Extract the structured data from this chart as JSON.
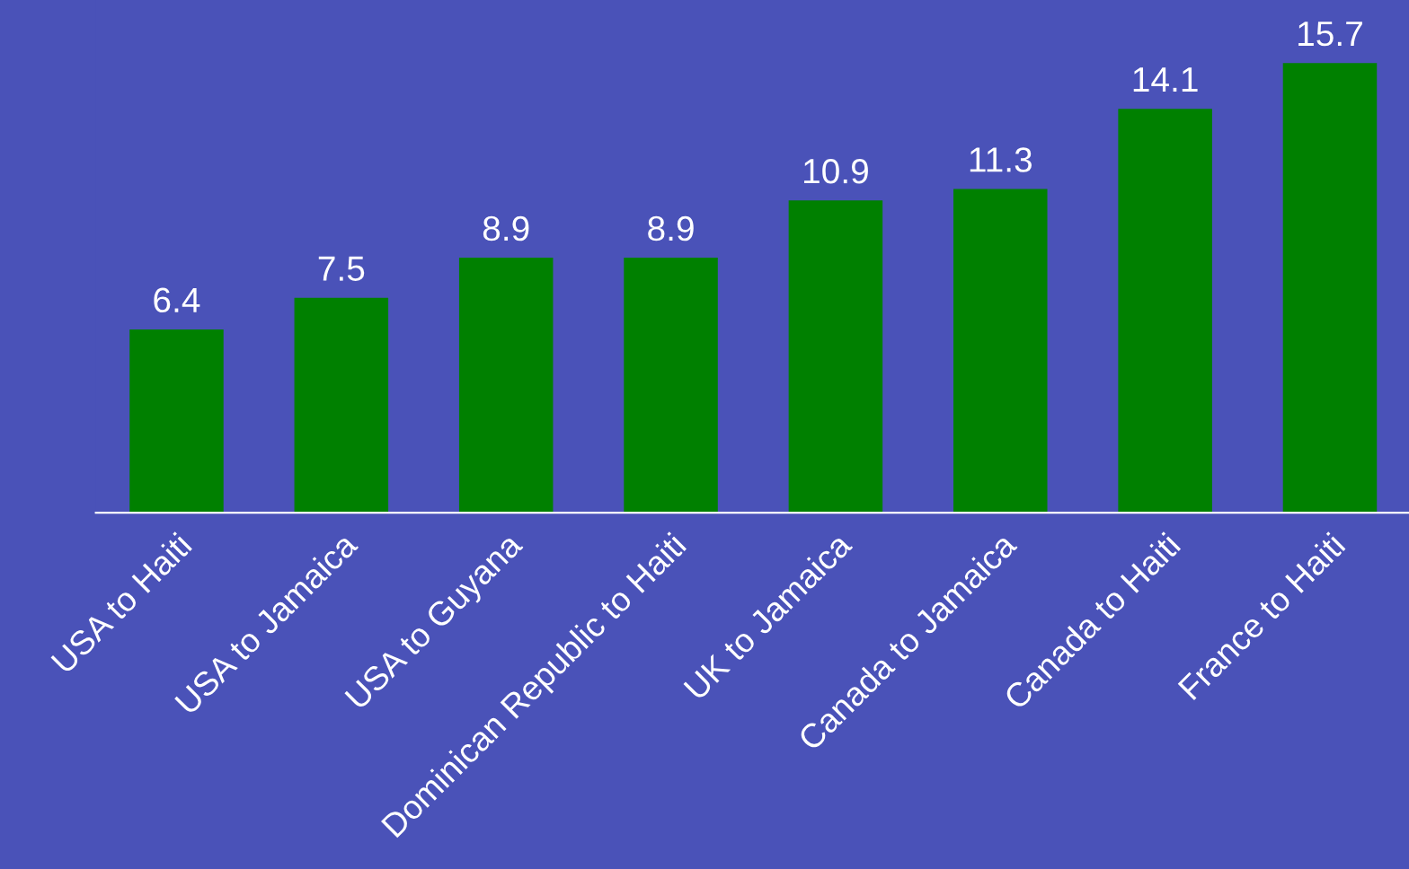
{
  "chart_data": {
    "type": "bar",
    "categories": [
      "USA to Haiti",
      "USA to Jamaica",
      "USA to Guyana",
      "Dominican Republic to Haiti",
      "UK to Jamaica",
      "Canada to Jamaica",
      "Canada to Haiti",
      "France to Haiti"
    ],
    "values": [
      6.4,
      7.5,
      8.9,
      8.9,
      10.9,
      11.3,
      14.1,
      15.7
    ],
    "color": "#008000",
    "data_labels": true,
    "grid": false,
    "legend": false
  }
}
